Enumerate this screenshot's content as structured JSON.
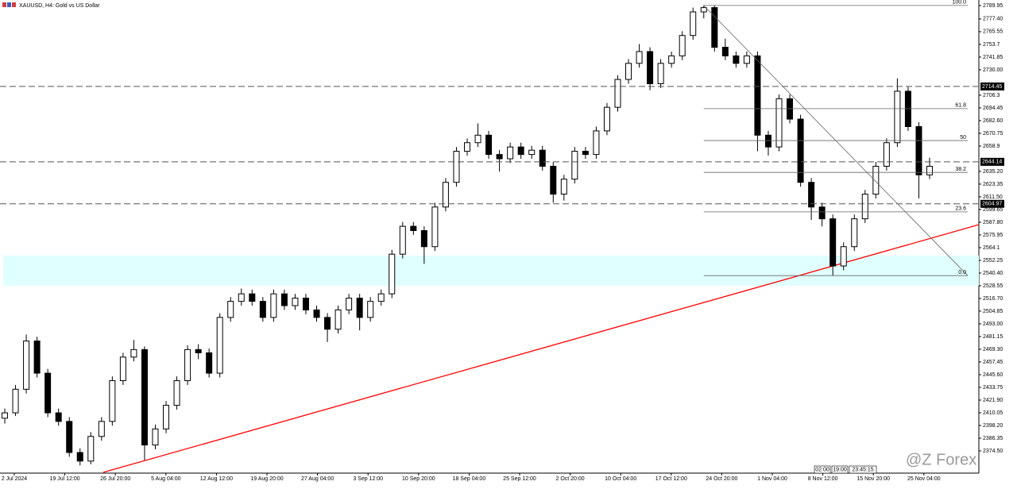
{
  "chart_data": {
    "type": "candlestick",
    "title": "XAUUSD, H4:  Gold vs US Dollar",
    "watermark": "@Z Forex",
    "ylim": [
      2354.5,
      2795.1
    ],
    "yticks": [
      2789.95,
      {
        "value": 2777.4,
        "label": "2777.40"
      },
      2765.55,
      2753.7,
      2741.85,
      {
        "value": 2730,
        "label": "2730.00"
      },
      2706.3,
      2694.45,
      {
        "value": 2682.6,
        "label": "2682.60"
      },
      2670.75,
      2658.9,
      {
        "value": 2635.2,
        "label": "2635.20"
      },
      2623.35,
      {
        "value": 2611.5,
        "label": "2611.50"
      },
      2599.65,
      {
        "value": 2587.8,
        "label": "2587.80"
      },
      2575.95,
      2564.1,
      2552.25,
      {
        "value": 2540.4,
        "label": "2540.40"
      },
      2528.55,
      {
        "value": 2516.7,
        "label": "2516.70"
      },
      2504.85,
      {
        "value": 2493,
        "label": "2493.00"
      },
      2481.15,
      {
        "value": 2469.3,
        "label": "2469.30"
      },
      2457.45,
      {
        "value": 2445.6,
        "label": "2445.60"
      },
      2433.75,
      {
        "value": 2421.9,
        "label": "2421.90"
      },
      2410.05,
      {
        "value": 2398.2,
        "label": "2398.20"
      },
      2386.35,
      {
        "value": 2374.5,
        "label": "2374.50"
      }
    ],
    "xlabels": [
      "2 Jul 2024",
      "19 Jul 12:00",
      "26 Jul 20:00",
      "5 Aug 04:00",
      "12 Aug 12:00",
      "19 Aug 20:00",
      "27 Aug 04:00",
      "3 Sep 12:00",
      "10 Sep 20:00",
      "18 Sep 04:00",
      "25 Sep 12:00",
      "2 Oct 20:00",
      "10 Oct 04:00",
      "17 Oct 12:00",
      "24 Oct 20:00",
      "1 Nov 04:00",
      "8 Nov 12:00",
      "15 Nov 20:00",
      "25 Nov 04:00"
    ],
    "candles": [
      [
        2405,
        2414,
        2400,
        2410
      ],
      [
        2410,
        2436,
        2407,
        2432
      ],
      [
        2432,
        2483,
        2428,
        2477
      ],
      [
        2477,
        2481,
        2443,
        2447
      ],
      [
        2447,
        2451,
        2406,
        2410
      ],
      [
        2410,
        2414,
        2398,
        2402
      ],
      [
        2402,
        2406,
        2369,
        2373
      ],
      [
        2373,
        2377,
        2361,
        2365
      ],
      [
        2365,
        2392,
        2362,
        2388
      ],
      [
        2388,
        2406,
        2384,
        2402
      ],
      [
        2402,
        2444,
        2398,
        2440
      ],
      [
        2440,
        2466,
        2436,
        2462
      ],
      [
        2462,
        2478,
        2458,
        2469
      ],
      [
        2469,
        2472,
        2366,
        2380
      ],
      [
        2380,
        2399,
        2376,
        2395
      ],
      [
        2395,
        2421,
        2391,
        2417
      ],
      [
        2417,
        2444,
        2413,
        2440
      ],
      [
        2440,
        2473,
        2436,
        2469
      ],
      [
        2469,
        2474,
        2460,
        2466
      ],
      [
        2466,
        2470,
        2443,
        2447
      ],
      [
        2447,
        2503,
        2443,
        2499
      ],
      [
        2499,
        2518,
        2495,
        2514
      ],
      [
        2514,
        2526,
        2510,
        2521
      ],
      [
        2521,
        2525,
        2510,
        2514
      ],
      [
        2514,
        2518,
        2495,
        2499
      ],
      [
        2499,
        2525,
        2495,
        2521
      ],
      [
        2521,
        2525,
        2506,
        2510
      ],
      [
        2510,
        2521,
        2506,
        2517
      ],
      [
        2517,
        2521,
        2502,
        2506
      ],
      [
        2506,
        2510,
        2495,
        2499
      ],
      [
        2499,
        2503,
        2476,
        2488
      ],
      [
        2488,
        2510,
        2484,
        2506
      ],
      [
        2506,
        2521,
        2502,
        2517
      ],
      [
        2517,
        2521,
        2487,
        2499
      ],
      [
        2499,
        2518,
        2495,
        2514
      ],
      [
        2514,
        2525,
        2510,
        2521
      ],
      [
        2521,
        2562,
        2517,
        2558
      ],
      [
        2558,
        2588,
        2554,
        2584
      ],
      [
        2584,
        2588,
        2576,
        2580
      ],
      [
        2580,
        2584,
        2549,
        2565
      ],
      [
        2565,
        2606,
        2561,
        2602
      ],
      [
        2602,
        2629,
        2598,
        2625
      ],
      [
        2625,
        2658,
        2621,
        2654
      ],
      [
        2654,
        2666,
        2650,
        2662
      ],
      [
        2662,
        2680,
        2658,
        2669
      ],
      [
        2669,
        2673,
        2647,
        2651
      ],
      [
        2651,
        2655,
        2635,
        2647
      ],
      [
        2647,
        2662,
        2643,
        2658
      ],
      [
        2658,
        2662,
        2647,
        2651
      ],
      [
        2651,
        2659,
        2647,
        2655
      ],
      [
        2655,
        2659,
        2636,
        2640
      ],
      [
        2640,
        2644,
        2606,
        2614
      ],
      [
        2614,
        2632,
        2608,
        2628
      ],
      [
        2628,
        2658,
        2624,
        2654
      ],
      [
        2654,
        2658,
        2647,
        2651
      ],
      [
        2651,
        2677,
        2647,
        2673
      ],
      [
        2673,
        2699,
        2669,
        2695
      ],
      [
        2695,
        2725,
        2691,
        2721
      ],
      [
        2721,
        2740,
        2717,
        2736
      ],
      [
        2736,
        2754,
        2732,
        2747
      ],
      [
        2747,
        2751,
        2711,
        2717
      ],
      [
        2717,
        2740,
        2713,
        2736
      ],
      [
        2736,
        2747,
        2732,
        2743
      ],
      [
        2743,
        2766,
        2739,
        2762
      ],
      [
        2762,
        2788,
        2758,
        2784
      ],
      [
        2784,
        2790,
        2778,
        2788
      ],
      [
        2788,
        2790,
        2747,
        2751
      ],
      [
        2751,
        2759,
        2739,
        2743
      ],
      [
        2743,
        2747,
        2732,
        2736
      ],
      [
        2736,
        2747,
        2732,
        2743
      ],
      [
        2743,
        2747,
        2654,
        2669
      ],
      [
        2669,
        2673,
        2650,
        2658
      ],
      [
        2658,
        2707,
        2654,
        2703
      ],
      [
        2703,
        2707,
        2680,
        2684
      ],
      [
        2684,
        2688,
        2621,
        2625
      ],
      [
        2625,
        2629,
        2590,
        2602
      ],
      [
        2602,
        2606,
        2584,
        2591
      ],
      [
        2591,
        2595,
        2538,
        2547
      ],
      [
        2547,
        2569,
        2543,
        2565
      ],
      [
        2565,
        2595,
        2561,
        2591
      ],
      [
        2591,
        2618,
        2587,
        2614
      ],
      [
        2614,
        2644,
        2610,
        2640
      ],
      [
        2640,
        2666,
        2636,
        2662
      ],
      [
        2662,
        2722,
        2658,
        2710
      ],
      [
        2710,
        2714,
        2673,
        2677
      ],
      [
        2677,
        2681,
        2610,
        2632
      ],
      [
        2632,
        2648,
        2628,
        2640
      ]
    ],
    "levels": [
      {
        "value": 2714.45,
        "label": "2714.45"
      },
      {
        "value": 2644.14,
        "label": "2644.14"
      },
      {
        "value": 2604.97,
        "label": "2604.97"
      }
    ],
    "fib": {
      "high": 2790,
      "low": 2538,
      "levels": [
        {
          "value": 100,
          "label": "100.0"
        },
        61.8,
        50,
        38.2,
        23.6,
        {
          "value": 0,
          "label": "0.0"
        }
      ]
    },
    "zone": [
      2528.5,
      2556.7
    ],
    "zone_color": "#e0ffff",
    "trendline": {
      "color": "#ff0000",
      "values": [
        2354.5,
        2585.5
      ]
    },
    "time_marks": [
      "02:00",
      "19:00",
      "23:45:15"
    ]
  }
}
